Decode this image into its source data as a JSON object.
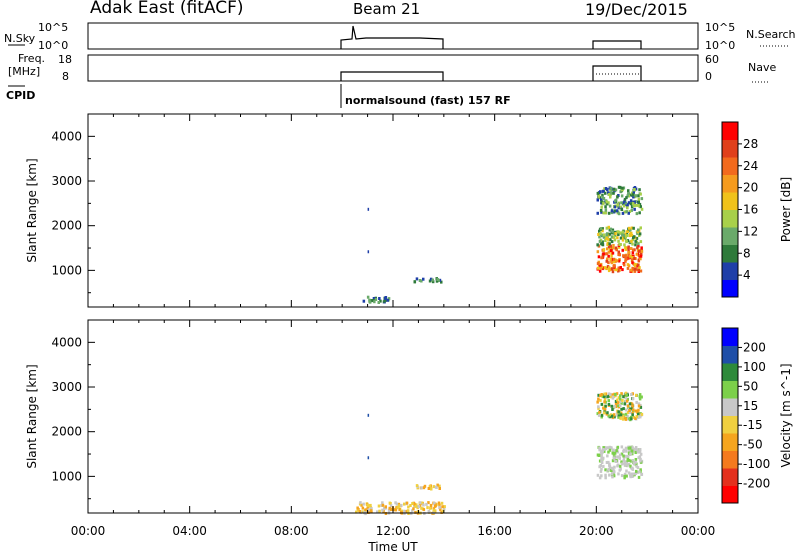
{
  "header": {
    "station": "Adak East (fitACF)",
    "beam": "Beam 21",
    "date": "19/Dec/2015",
    "cpid_label": "CPID",
    "mode_text": "normalsound (fast) 157 RF"
  },
  "status_panels": {
    "nsky_label": "N.Sky",
    "nsky_ticks": [
      "10^5",
      "10^0"
    ],
    "nsearch_label": "N.Search",
    "nsearch_ticks": [
      "10^5",
      "10^0"
    ],
    "freq_label": "Freq.",
    "freq_unit": "[MHz]",
    "freq_ticks": [
      "18",
      "8"
    ],
    "nave_label": "Nave",
    "nave_ticks": [
      "60",
      "0"
    ]
  },
  "chart_data": [
    {
      "type": "heatmap",
      "name": "Power",
      "ylabel": "Slant Range [km]",
      "xlim_hours": [
        0,
        24
      ],
      "ylim_km": [
        180,
        4500
      ],
      "yticks": [
        1000,
        2000,
        3000,
        4000
      ],
      "colorbar": {
        "label": "Power [dB]",
        "ticks": [
          "28",
          "24",
          "20",
          "16",
          "12",
          "8",
          "4"
        ],
        "colors": [
          "#0000ff",
          "#1f3fa8",
          "#2e7a3a",
          "#6aaa6a",
          "#a8d04a",
          "#f0c21a",
          "#f59b1e",
          "#f26a1d",
          "#e0401b",
          "#ff0000"
        ]
      },
      "data_windows_hours": [
        [
          10.0,
          14.1
        ],
        [
          20.0,
          21.85
        ]
      ],
      "scatter_regions": [
        {
          "x": [
            10.8,
            11.8
          ],
          "y": [
            300,
            450
          ],
          "level": "low"
        },
        {
          "x": [
            12.8,
            13.9
          ],
          "y": [
            750,
            850
          ],
          "level": "low"
        },
        {
          "x": [
            20.0,
            21.75
          ],
          "y": [
            1000,
            1600
          ],
          "level": "high"
        },
        {
          "x": [
            20.0,
            21.75
          ],
          "y": [
            1600,
            2000
          ],
          "level": "mid"
        },
        {
          "x": [
            20.0,
            21.75
          ],
          "y": [
            2300,
            2900
          ],
          "level": "low-mid"
        }
      ]
    },
    {
      "type": "heatmap",
      "name": "Velocity",
      "ylabel": "Slant Range [km]",
      "xlabel": "Time UT",
      "xticks": [
        "00:00",
        "04:00",
        "08:00",
        "12:00",
        "16:00",
        "20:00",
        "00:00"
      ],
      "xlim_hours": [
        0,
        24
      ],
      "ylim_km": [
        180,
        4500
      ],
      "yticks": [
        1000,
        2000,
        3000,
        4000
      ],
      "colorbar": {
        "label": "Velocity [m s^-1]",
        "ticks": [
          "200",
          "100",
          "50",
          "15",
          "-15",
          "-50",
          "-100",
          "-200"
        ],
        "colors": [
          "#ff0000",
          "#e4301d",
          "#f47a1e",
          "#f5a51e",
          "#f0d040",
          "#c8c8c8",
          "#7cd04a",
          "#2e8a3a",
          "#1f4fa8",
          "#0000ff"
        ]
      },
      "data_windows_hours": [
        [
          10.0,
          14.1
        ],
        [
          20.0,
          21.85
        ]
      ],
      "scatter_regions": [
        {
          "x": [
            10.5,
            14.0
          ],
          "y": [
            200,
            450
          ],
          "level": "negative"
        },
        {
          "x": [
            12.8,
            13.9
          ],
          "y": [
            750,
            850
          ],
          "level": "negative"
        },
        {
          "x": [
            20.0,
            21.75
          ],
          "y": [
            1000,
            1700
          ],
          "level": "ground"
        },
        {
          "x": [
            20.0,
            21.75
          ],
          "y": [
            2300,
            2900
          ],
          "level": "mixed"
        }
      ]
    }
  ]
}
